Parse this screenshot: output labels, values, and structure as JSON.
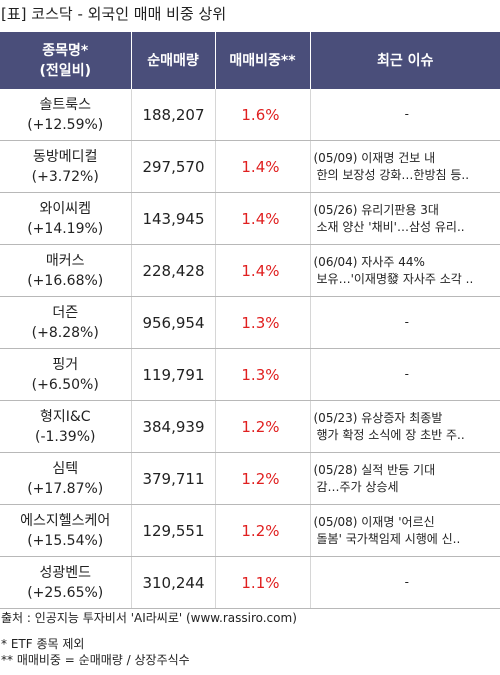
{
  "title": "[표] 코스닥 - 외국인 매매 비중 상위",
  "header": {
    "name_line1": "종목명*",
    "name_line2": "(전일비)",
    "volume": "순매매량",
    "ratio": "매매비중**",
    "issue": "최근 이슈"
  },
  "rows": [
    {
      "name": "솔트룩스",
      "change": "(+12.59%)",
      "volume": "188,207",
      "ratio": "1.6%",
      "issue1": "-",
      "issue2": ""
    },
    {
      "name": "동방메디컬",
      "change": "(+3.72%)",
      "volume": "297,570",
      "ratio": "1.4%",
      "issue1": "(05/09) 이재명 건보 내",
      "issue2": "한의 보장성 강화…한방침 등.."
    },
    {
      "name": "와이씨켐",
      "change": "(+14.19%)",
      "volume": "143,945",
      "ratio": "1.4%",
      "issue1": "(05/26) 유리기판용 3대",
      "issue2": "소재 양산 '채비'…삼성 유리.."
    },
    {
      "name": "매커스",
      "change": "(+16.68%)",
      "volume": "228,428",
      "ratio": "1.4%",
      "issue1": "(06/04) 자사주 44%",
      "issue2": "보유…'이재명發 자사주 소각 .."
    },
    {
      "name": "더즌",
      "change": "(+8.28%)",
      "volume": "956,954",
      "ratio": "1.3%",
      "issue1": "-",
      "issue2": ""
    },
    {
      "name": "핑거",
      "change": "(+6.50%)",
      "volume": "119,791",
      "ratio": "1.3%",
      "issue1": "-",
      "issue2": ""
    },
    {
      "name": "형지I&C",
      "change": "(-1.39%)",
      "volume": "384,939",
      "ratio": "1.2%",
      "issue1": "(05/23) 유상증자 최종발",
      "issue2": "행가 확정 소식에 장 초반 주.."
    },
    {
      "name": "심텍",
      "change": "(+17.87%)",
      "volume": "379,711",
      "ratio": "1.2%",
      "issue1": "(05/28) 실적 반등 기대",
      "issue2": "감…주가 상승세"
    },
    {
      "name": "에스지헬스케어",
      "change": "(+15.54%)",
      "volume": "129,551",
      "ratio": "1.2%",
      "issue1": "(05/08) 이재명 '어르신",
      "issue2": "돌봄' 국가책임제 시행에 신.."
    },
    {
      "name": "성광벤드",
      "change": "(+25.65%)",
      "volume": "310,244",
      "ratio": "1.1%",
      "issue1": "-",
      "issue2": ""
    }
  ],
  "footer": {
    "source": "출처 : 인공지능 투자비서 'AI라씨로' (www.rassiro.com)",
    "note1": "* ETF 종목 제외",
    "note2": "** 매매비중 = 순매매량 / 상장주식수"
  },
  "colors": {
    "header_bg": "#4a4e7a",
    "ratio_text": "#e02020"
  }
}
